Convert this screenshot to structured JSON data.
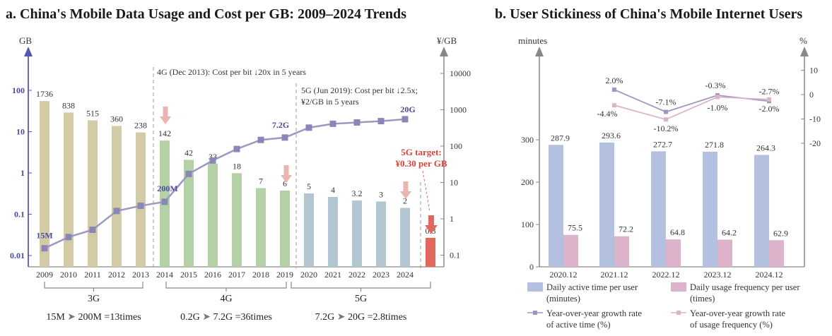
{
  "chart_data": [
    {
      "id": "a",
      "type": "bar+line",
      "title": "a. China's Mobile Data Usage and Cost per GB: 2009–2024 Trends",
      "left_axis_label": "GB",
      "right_axis_label": "¥/GB",
      "left_ticks": [
        "100",
        "10",
        "1",
        "0.1",
        "0.01"
      ],
      "right_ticks": [
        "10000",
        "1000",
        "100",
        "10",
        "1",
        "0.1"
      ],
      "years": [
        "2009",
        "2010",
        "2011",
        "2012",
        "2013",
        "2014",
        "2015",
        "2016",
        "2017",
        "2018",
        "2019",
        "2020",
        "2021",
        "2022",
        "2023",
        "2024"
      ],
      "cost_per_gb": [
        1736,
        838,
        515,
        360,
        238,
        142,
        42,
        33,
        18,
        7,
        6,
        5,
        4,
        3.2,
        3,
        2
      ],
      "cost_labels": [
        "1736",
        "838",
        "515",
        "360",
        "238",
        "142",
        "42",
        "33",
        "18",
        "7",
        "6",
        "5",
        "4",
        "3.2",
        "3",
        "2"
      ],
      "data_usage_gb": [
        0.015,
        0.028,
        0.042,
        0.12,
        0.16,
        0.2,
        0.95,
        2.0,
        3.8,
        6.3,
        7.2,
        12.5,
        15.5,
        16.7,
        18.0,
        20.0
      ],
      "generation": [
        "3G",
        "3G",
        "3G",
        "3G",
        "3G",
        "4G",
        "4G",
        "4G",
        "4G",
        "4G",
        "4G",
        "5G",
        "5G",
        "5G",
        "5G",
        "5G"
      ],
      "target": {
        "year_label": "",
        "value": 0.3,
        "value_label": "0.3",
        "label_line1": "5G target:",
        "label_line2": "¥0.30 per GB"
      },
      "usage_annotations": [
        {
          "year": "2009",
          "text": "15M"
        },
        {
          "year": "2014",
          "text": "200M"
        },
        {
          "year": "2019",
          "text": "7.2G"
        },
        {
          "year": "2024",
          "text": "20G"
        }
      ],
      "annotations": {
        "g4_line": "4G (Dec 2013): Cost per bit ↓20x in 5 years",
        "g5_line1": "5G (Jun 2019): Cost per bit ↓2.5x;",
        "g5_line2": "¥2/GB in 5 years"
      },
      "generations": [
        {
          "name": "3G",
          "summary_from": "15M",
          "summary_to": "200M",
          "summary_factor": "=13times"
        },
        {
          "name": "4G",
          "summary_from": "0.2G",
          "summary_to": "7.2G",
          "summary_factor": "=36times"
        },
        {
          "name": "5G",
          "summary_from": "7.2G",
          "summary_to": "20G",
          "summary_factor": "=2.8times"
        }
      ],
      "colors": {
        "3G": "#d3cba6",
        "4G": "#b3d1a5",
        "5G": "#b3c7d3",
        "target": "#e2685e",
        "line": "#9c98c2",
        "marker": "#8a86b8",
        "arrow": "#eab4b0",
        "arrow_strong": "#e2685e"
      }
    },
    {
      "id": "b",
      "type": "bar+line",
      "title": "b. User Stickiness of China's Mobile Internet Users",
      "left_axis_label": "minutes",
      "right_axis_label": "%",
      "left_ticks": [
        "300",
        "200",
        "100",
        "0"
      ],
      "right_ticks": [
        "10",
        "0",
        "-10",
        "-20"
      ],
      "categories": [
        "2020.12",
        "2021.12",
        "2022.12",
        "2023.12",
        "2024.12"
      ],
      "series": [
        {
          "name": "Daily active time per user",
          "unit_note": "(minutes)",
          "values": [
            287.9,
            293.6,
            272.7,
            271.8,
            264.3
          ],
          "labels": [
            "287.9",
            "293.6",
            "272.7",
            "271.8",
            "264.3"
          ],
          "color": "#b4c0df"
        },
        {
          "name": "Daily usage frequency per user",
          "unit_note": "(times)",
          "values": [
            75.5,
            72.2,
            64.8,
            64.2,
            62.9
          ],
          "labels": [
            "75.5",
            "72.2",
            "64.8",
            "64.2",
            "62.9"
          ],
          "color": "#ddb3cb"
        },
        {
          "name": "Year-over-year growth rate",
          "unit_note": "of active time (%)",
          "values": [
            null,
            2.0,
            -7.1,
            -0.3,
            -2.7
          ],
          "labels": [
            "",
            "2.0%",
            "-7.1%",
            "-0.3%",
            "-2.7%"
          ],
          "color": "#9c98c2"
        },
        {
          "name": "Year-over-year growth rate",
          "unit_note": "of usage frequency (%)",
          "values": [
            null,
            -4.4,
            -10.2,
            -1.0,
            -2.0
          ],
          "labels": [
            "",
            "-4.4%",
            "-10.2%",
            "-1.0%",
            "-2.0%"
          ],
          "color": "#ddb3cb"
        }
      ]
    }
  ]
}
